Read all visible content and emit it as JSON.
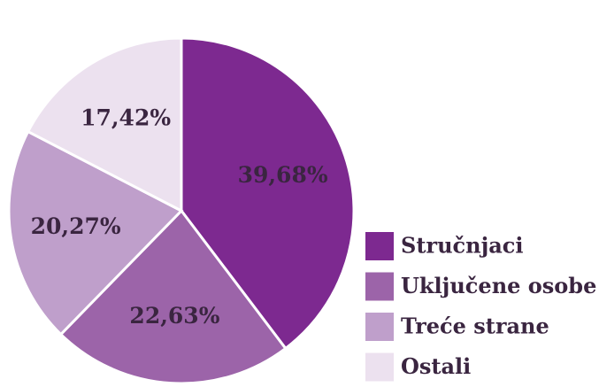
{
  "chart_data": {
    "type": "pie",
    "categories": [
      "Stručnjaci",
      "Uključene osobe",
      "Treće strane",
      "Ostali"
    ],
    "values": [
      39.68,
      22.63,
      20.27,
      17.42
    ],
    "value_labels": [
      "39,68%",
      "22,63%",
      "20,27%",
      "17,42%"
    ],
    "colors": [
      "#7d2990",
      "#9c64a9",
      "#bf9fcb",
      "#ece1ef"
    ],
    "legend": "right"
  }
}
